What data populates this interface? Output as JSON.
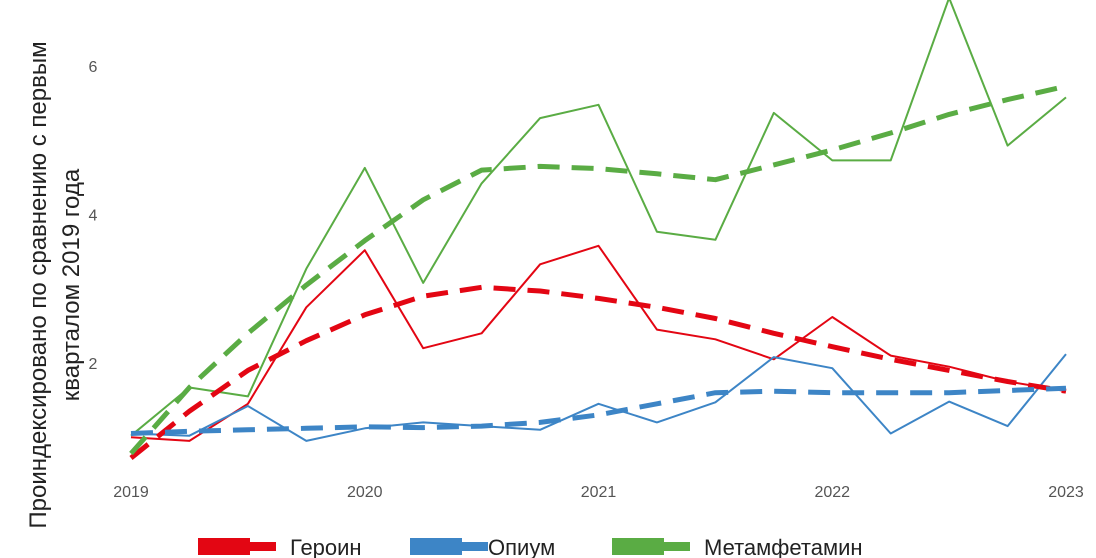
{
  "chart_data": {
    "type": "line",
    "ylabel_line1": "Проиндексировано по сравнению с первым",
    "ylabel_line2": "кварталом 2019 года",
    "xlabel": "",
    "title": "",
    "grid": false,
    "legend_position": "bottom",
    "ylim": [
      0.4,
      6.9
    ],
    "x_ticks": [
      "2019",
      "2020",
      "2021",
      "2022",
      "2023"
    ],
    "y_ticks": [
      2,
      4,
      6
    ],
    "x_quarters": [
      0,
      0.25,
      0.5,
      0.75,
      1,
      1.25,
      1.5,
      1.75,
      2,
      2.25,
      2.5,
      2.75,
      3,
      3.25,
      3.5,
      3.75,
      4
    ],
    "series": [
      {
        "name": "Героин",
        "color": "#e30613",
        "values": [
          1.0,
          0.95,
          1.45,
          2.75,
          3.52,
          2.2,
          2.4,
          3.33,
          3.58,
          2.45,
          2.32,
          2.05,
          2.62,
          2.1,
          1.95,
          1.75,
          1.62
        ],
        "trend": [
          0.72,
          1.35,
          1.9,
          2.3,
          2.65,
          2.9,
          3.02,
          2.97,
          2.87,
          2.75,
          2.6,
          2.4,
          2.22,
          2.05,
          1.9,
          1.75,
          1.62
        ]
      },
      {
        "name": "Опиум",
        "color": "#3d85c6",
        "values": [
          1.05,
          1.02,
          1.42,
          0.95,
          1.12,
          1.2,
          1.15,
          1.1,
          1.45,
          1.2,
          1.47,
          2.08,
          1.93,
          1.05,
          1.48,
          1.15,
          2.12
        ],
        "trend": [
          1.05,
          1.08,
          1.1,
          1.12,
          1.14,
          1.13,
          1.15,
          1.2,
          1.3,
          1.45,
          1.6,
          1.62,
          1.6,
          1.6,
          1.6,
          1.63,
          1.66
        ]
      },
      {
        "name": "Метамфетамин",
        "color": "#5aac44",
        "values": [
          1.02,
          1.67,
          1.55,
          3.27,
          4.63,
          3.08,
          4.42,
          5.3,
          5.48,
          3.77,
          3.66,
          5.37,
          4.73,
          4.73,
          6.92,
          4.93,
          5.58
        ],
        "trend": [
          0.78,
          1.67,
          2.4,
          3.05,
          3.65,
          4.2,
          4.6,
          4.65,
          4.62,
          4.55,
          4.47,
          4.67,
          4.87,
          5.1,
          5.35,
          5.55,
          5.73
        ]
      }
    ]
  }
}
